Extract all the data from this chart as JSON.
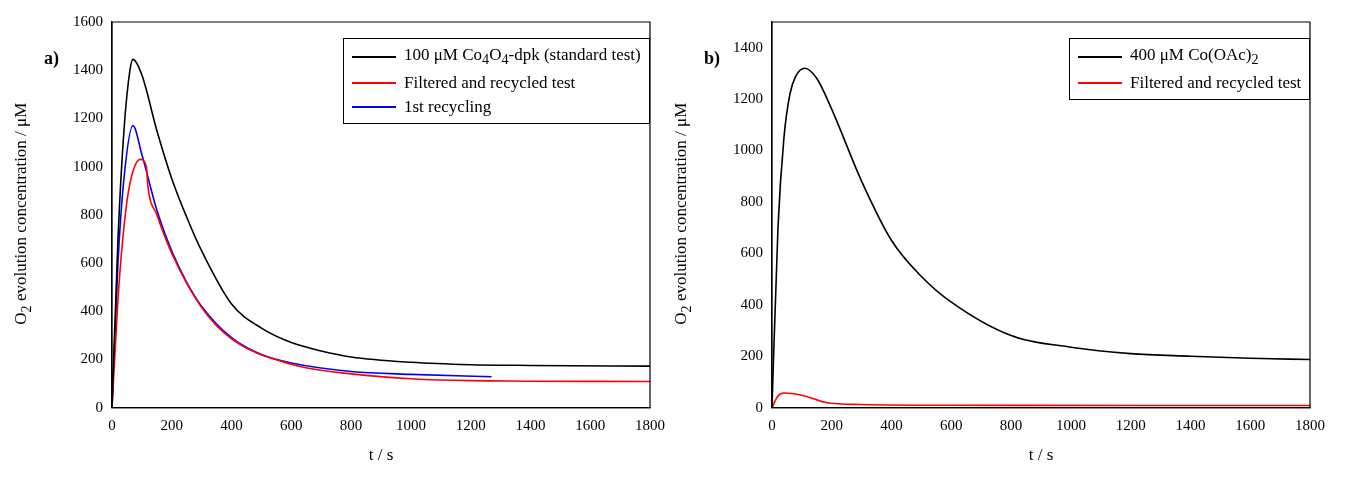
{
  "chart_data": [
    {
      "type": "line",
      "title": "a)",
      "xlabel": "t / s",
      "ylabel": "O$_{2}$ evolution concentration / μM",
      "xlim": [
        0,
        1800
      ],
      "xticks": [
        0,
        200,
        400,
        600,
        800,
        1000,
        1200,
        1400,
        1600,
        1800
      ],
      "ylim": [
        0,
        1600
      ],
      "yticks": [
        0,
        200,
        400,
        600,
        800,
        1000,
        1200,
        1400,
        1600
      ],
      "grid": false,
      "legend": "top right",
      "marker": "none",
      "line_style": "solid",
      "series": [
        {
          "name": "100 μM Co$_{4}$O$_{4}$-dpk (standard test)",
          "color": "#000000",
          "x": [
            0,
            20,
            40,
            60,
            70,
            100,
            150,
            200,
            250,
            300,
            400,
            500,
            600,
            700,
            800,
            1000,
            1200,
            1400,
            1800
          ],
          "values": [
            0,
            700,
            1150,
            1400,
            1445,
            1380,
            1150,
            950,
            790,
            650,
            430,
            330,
            270,
            235,
            210,
            188,
            178,
            175,
            172
          ]
        },
        {
          "name": "Filtered and recycled test",
          "color": "#ff0000",
          "x": [
            0,
            20,
            40,
            60,
            95,
            115,
            120,
            150,
            200,
            300,
            400,
            600,
            800,
            1000,
            1200,
            1800
          ],
          "values": [
            0,
            450,
            750,
            930,
            1030,
            1000,
            920,
            800,
            640,
            415,
            285,
            180,
            140,
            120,
            112,
            108
          ]
        },
        {
          "name": "1st recycling",
          "color": "#0000ff",
          "x": [
            0,
            20,
            40,
            70,
            100,
            150,
            200,
            250,
            300,
            400,
            500,
            600,
            800,
            1000,
            1270
          ],
          "values": [
            0,
            600,
            950,
            1170,
            1050,
            820,
            650,
            520,
            420,
            290,
            220,
            185,
            150,
            138,
            128
          ]
        }
      ]
    },
    {
      "type": "line",
      "title": "b)",
      "xlabel": "t / s",
      "ylabel": "O$_{2}$ evolution concentration / μM",
      "xlim": [
        0,
        1800
      ],
      "xticks": [
        0,
        200,
        400,
        600,
        800,
        1000,
        1200,
        1400,
        1600,
        1800
      ],
      "ylim": [
        0,
        1500
      ],
      "yticks": [
        0,
        200,
        400,
        600,
        800,
        1000,
        1200,
        1400
      ],
      "grid": false,
      "legend": "top right",
      "marker": "none",
      "line_style": "solid",
      "series": [
        {
          "name": "400 μM Co(OAc)$_{2}$",
          "color": "#000000",
          "x": [
            0,
            20,
            40,
            60,
            80,
            110,
            150,
            200,
            300,
            400,
            500,
            600,
            800,
            1000,
            1200,
            1400,
            1600,
            1800
          ],
          "values": [
            0,
            700,
            1050,
            1220,
            1290,
            1320,
            1280,
            1160,
            880,
            650,
            510,
            410,
            280,
            235,
            210,
            200,
            192,
            187
          ]
        },
        {
          "name": "Filtered and recycled test",
          "color": "#ff0000",
          "x": [
            0,
            20,
            40,
            100,
            150,
            180,
            300,
            600,
            1800
          ],
          "values": [
            0,
            45,
            57,
            48,
            30,
            20,
            12,
            9,
            8
          ]
        }
      ]
    }
  ]
}
